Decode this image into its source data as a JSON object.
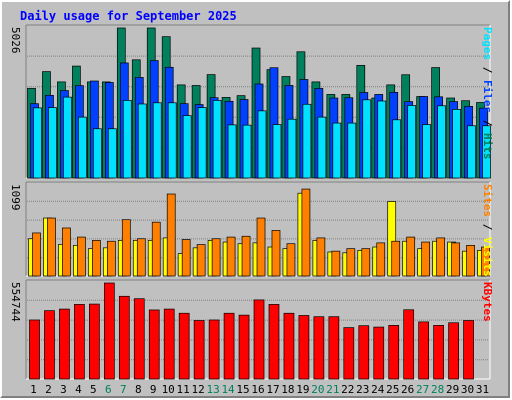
{
  "chart_data": {
    "type": "bar",
    "title": "Daily usage for September 2025",
    "days": [
      "1",
      "2",
      "3",
      "4",
      "5",
      "6",
      "7",
      "8",
      "9",
      "10",
      "11",
      "12",
      "13",
      "14",
      "15",
      "16",
      "17",
      "18",
      "19",
      "20",
      "21",
      "22",
      "23",
      "24",
      "25",
      "26",
      "27",
      "28",
      "29",
      "30",
      "31"
    ],
    "weekend_days": [
      "6",
      "7",
      "13",
      "14",
      "20",
      "21",
      "27",
      "28"
    ],
    "colors": {
      "hits": "#00805c",
      "files": "#0040ff",
      "pages": "#00e0ff",
      "visits": "#ffff00",
      "sites": "#ff8000",
      "kbytes": "#ff0000",
      "weekday_label": "#000000",
      "weekend_label": "#00805c"
    },
    "panels": [
      {
        "id": "hits-panel",
        "max_label": "5026",
        "ymax": 5026,
        "legend": [
          {
            "text": "Pages",
            "color": "#00e0ff"
          },
          {
            "text": " / ",
            "color": "#000000"
          },
          {
            "text": "Files",
            "color": "#0040ff"
          },
          {
            "text": " / ",
            "color": "#000000"
          },
          {
            "text": "Hits",
            "color": "#00805c"
          }
        ],
        "series": [
          {
            "name": "Hits",
            "color": "#00805c",
            "values": [
              3005,
              3565,
              3220,
              3750,
              3220,
              3220,
              5026,
              3960,
              5026,
              4736,
              3120,
              3100,
              3465,
              2700,
              2760,
              4355,
              3630,
              3400,
              4230,
              3220,
              2800,
              2800,
              3775,
              2680,
              3120,
              3460,
              2730,
              3700,
              2680,
              2590,
              2530
            ]
          },
          {
            "name": "Files",
            "color": "#0040ff",
            "values": [
              2490,
              2770,
              2930,
              3095,
              3250,
              3200,
              3855,
              3370,
              3935,
              3710,
              2490,
              2460,
              2690,
              2570,
              2630,
              3150,
              3695,
              3100,
              3300,
              3000,
              2680,
              2690,
              2865,
              2800,
              2870,
              2560,
              2730,
              2720,
              2560,
              2400,
              2340
            ]
          },
          {
            "name": "Pages",
            "color": "#00e0ff",
            "values": [
              2350,
              2360,
              2710,
              2040,
              1650,
              1650,
              2600,
              2480,
              2520,
              2520,
              2090,
              2360,
              2600,
              1780,
              1770,
              2250,
              1790,
              1970,
              2470,
              2040,
              1840,
              1840,
              2620,
              2580,
              1950,
              2430,
              1790,
              2420,
              2300,
              1750,
              1750
            ]
          }
        ]
      },
      {
        "id": "visits-panel",
        "max_label": "1099",
        "ymax": 1099,
        "legend": [
          {
            "text": "Sites",
            "color": "#ff8000"
          },
          {
            "text": " / ",
            "color": "#000000"
          },
          {
            "text": "Visits",
            "color": "#ffff00"
          }
        ],
        "series": [
          {
            "name": "Visits",
            "color": "#ffff00",
            "values": [
              450,
              700,
              380,
              370,
              330,
              340,
              430,
              430,
              430,
              460,
              270,
              340,
              430,
              410,
              390,
              400,
              350,
              330,
              1000,
              430,
              290,
              280,
              310,
              350,
              900,
              420,
              330,
              420,
              410,
              300,
              310
            ]
          },
          {
            "name": "Sites",
            "color": "#ff8000",
            "values": [
              520,
              700,
              580,
              470,
              430,
              420,
              680,
              450,
              650,
              990,
              440,
              380,
              450,
              470,
              480,
              700,
              550,
              390,
              1050,
              460,
              300,
              330,
              330,
              400,
              420,
              470,
              410,
              460,
              400,
              370,
              350
            ]
          }
        ]
      },
      {
        "id": "kbytes-panel",
        "max_label": "554744",
        "ymax": 554744,
        "legend": [
          {
            "text": "KBytes",
            "color": "#ff0000"
          }
        ],
        "series": [
          {
            "name": "KBytes",
            "color": "#ff0000",
            "values": [
              341000,
              395000,
              404000,
              431000,
              433000,
              554744,
              478000,
              464000,
              399000,
              404000,
              380000,
              338000,
              341000,
              380000,
              369000,
              457000,
              431000,
              380000,
              367000,
              360000,
              360000,
              297000,
              308000,
              300000,
              310000,
              400000,
              330000,
              310000,
              325000,
              338000,
              0
            ]
          }
        ]
      }
    ]
  }
}
